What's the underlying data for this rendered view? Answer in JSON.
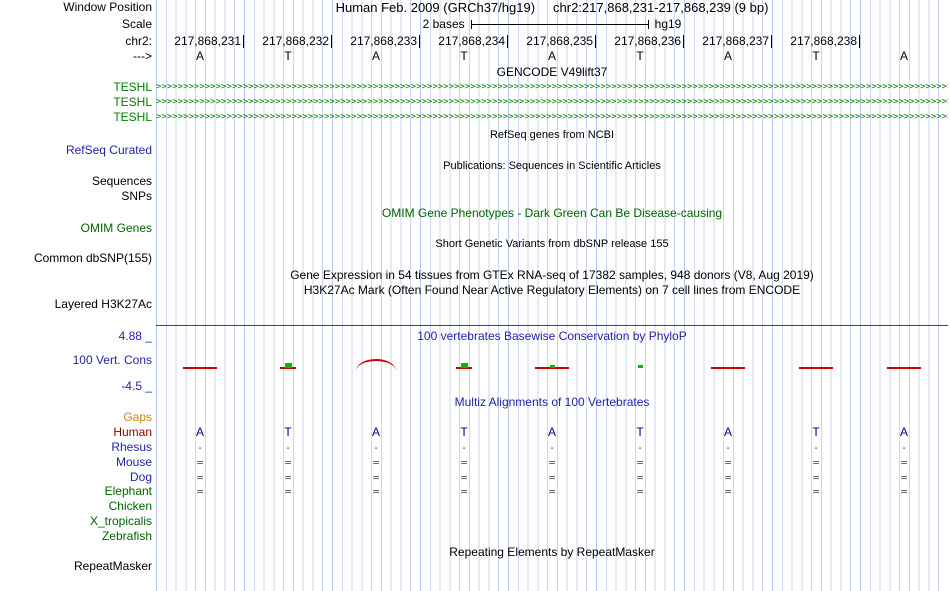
{
  "colors": {
    "grid": "#cdd6ee",
    "grid_major": "#b9c6e6",
    "track_green": "#008000",
    "dark_green": "#006400",
    "blue": "#2222aa",
    "navy": "#000080",
    "orange": "#cc8800",
    "maroon": "#8b0000",
    "red": "#cc0000",
    "bright_green": "#00bb00"
  },
  "header": {
    "assembly": "Human Feb. 2009 (GRCh37/hg19)",
    "range": "chr2:217,868,231-217,868,239 (9 bp)",
    "window_position_label": "Window Position",
    "scale_label": "Scale",
    "scale_value": "2 bases",
    "scale_assembly": "hg19",
    "chrom_label": "chr2:",
    "strand_label": "--->",
    "positions": [
      "217,868,231",
      "217,868,232",
      "217,868,233",
      "217,868,234",
      "217,868,235",
      "217,868,236",
      "217,868,237",
      "217,868,238"
    ],
    "bases": [
      "A",
      "T",
      "A",
      "T",
      "A",
      "T",
      "A",
      "T",
      "A"
    ]
  },
  "tracks": {
    "gencode": {
      "title": "GENCODE V49lift37",
      "gene_label": "TESHL",
      "rows": 3,
      "arrow_char": ">",
      "arrows_per_row": 180
    },
    "refseq": {
      "title": "RefSeq genes from NCBI",
      "label": "RefSeq Curated"
    },
    "publications": {
      "title": "Publications: Sequences in Scientific Articles",
      "labels": [
        "Sequences",
        "SNPs"
      ]
    },
    "omim": {
      "title": "OMIM Gene Phenotypes - Dark Green Can Be Disease-causing",
      "label": "OMIM Genes"
    },
    "dbsnp": {
      "title": "Short Genetic Variants from dbSNP release 155",
      "label": "Common dbSNP(155)"
    },
    "gtex": {
      "title": "Gene Expression in 54 tissues from GTEx RNA-seq of 17382 samples, 948 donors (V8, Aug 2019)"
    },
    "h3k27ac": {
      "title": "H3K27Ac Mark (Often Found Near Active Regulatory Elements) on 7 cell lines from ENCODE",
      "label": "Layered H3K27Ac"
    },
    "phylop": {
      "title": "100 vertebrates Basewise Conservation by PhyloP",
      "label": "100 Vert. Cons",
      "max": "4.88 _",
      "min": "-4.5 _"
    },
    "multiz": {
      "title": "Multiz Alignments of 100 Vertebrates"
    },
    "repeatmasker": {
      "title": "Repeating Elements by RepeatMasker",
      "label": "RepeatMasker"
    }
  },
  "chart_data": {
    "type": "genome-browser-tracks",
    "region": {
      "chrom": "chr2",
      "start": 217868231,
      "end": 217868239,
      "assembly": "GRCh37/hg19",
      "width_bp": 9
    },
    "reference_bases": [
      "A",
      "T",
      "A",
      "T",
      "A",
      "T",
      "A",
      "T",
      "A"
    ],
    "phylop": {
      "ylim": [
        -4.5,
        4.88
      ],
      "marks": [
        {
          "col": 0,
          "type": "red-dash"
        },
        {
          "col": 1,
          "type": "red-dash-small"
        },
        {
          "col": 1,
          "type": "green-square"
        },
        {
          "col": 2,
          "type": "red-arc"
        },
        {
          "col": 3,
          "type": "red-dash-small"
        },
        {
          "col": 3,
          "type": "green-square"
        },
        {
          "col": 4,
          "type": "red-dash"
        },
        {
          "col": 4,
          "type": "green-square-small"
        },
        {
          "col": 5,
          "type": "green-square-small"
        },
        {
          "col": 6,
          "type": "red-dash"
        },
        {
          "col": 7,
          "type": "red-dash"
        },
        {
          "col": 8,
          "type": "red-dash"
        }
      ]
    },
    "alignment": {
      "species": [
        {
          "name": "Gaps",
          "color_key": "orange",
          "cells": [
            "",
            "",
            "",
            "",
            "",
            "",
            "",
            "",
            ""
          ]
        },
        {
          "name": "Human",
          "color_key": "maroon",
          "cells": [
            "A",
            "T",
            "A",
            "T",
            "A",
            "T",
            "A",
            "T",
            "A"
          ]
        },
        {
          "name": "Rhesus",
          "color_key": "blue",
          "cells": [
            "-",
            "-",
            "-",
            "-",
            "-",
            "-",
            "-",
            "-",
            "-"
          ]
        },
        {
          "name": "Mouse",
          "color_key": "blue",
          "cells": [
            "=",
            "=",
            "=",
            "=",
            "=",
            "=",
            "=",
            "=",
            "="
          ]
        },
        {
          "name": "Dog",
          "color_key": "blue",
          "cells": [
            "=",
            "=",
            "=",
            "=",
            "=",
            "=",
            "=",
            "=",
            "="
          ]
        },
        {
          "name": "Elephant",
          "color_key": "green",
          "cells": [
            "=",
            "=",
            "=",
            "=",
            "=",
            "=",
            "=",
            "=",
            "="
          ]
        },
        {
          "name": "Chicken",
          "color_key": "green",
          "cells": [
            "",
            "",
            "",
            "",
            "",
            "",
            "",
            "",
            ""
          ]
        },
        {
          "name": "X_tropicalis",
          "color_key": "green",
          "cells": [
            "",
            "",
            "",
            "",
            "",
            "",
            "",
            "",
            ""
          ]
        },
        {
          "name": "Zebrafish",
          "color_key": "green",
          "cells": [
            "",
            "",
            "",
            "",
            "",
            "",
            "",
            "",
            ""
          ]
        }
      ]
    }
  }
}
